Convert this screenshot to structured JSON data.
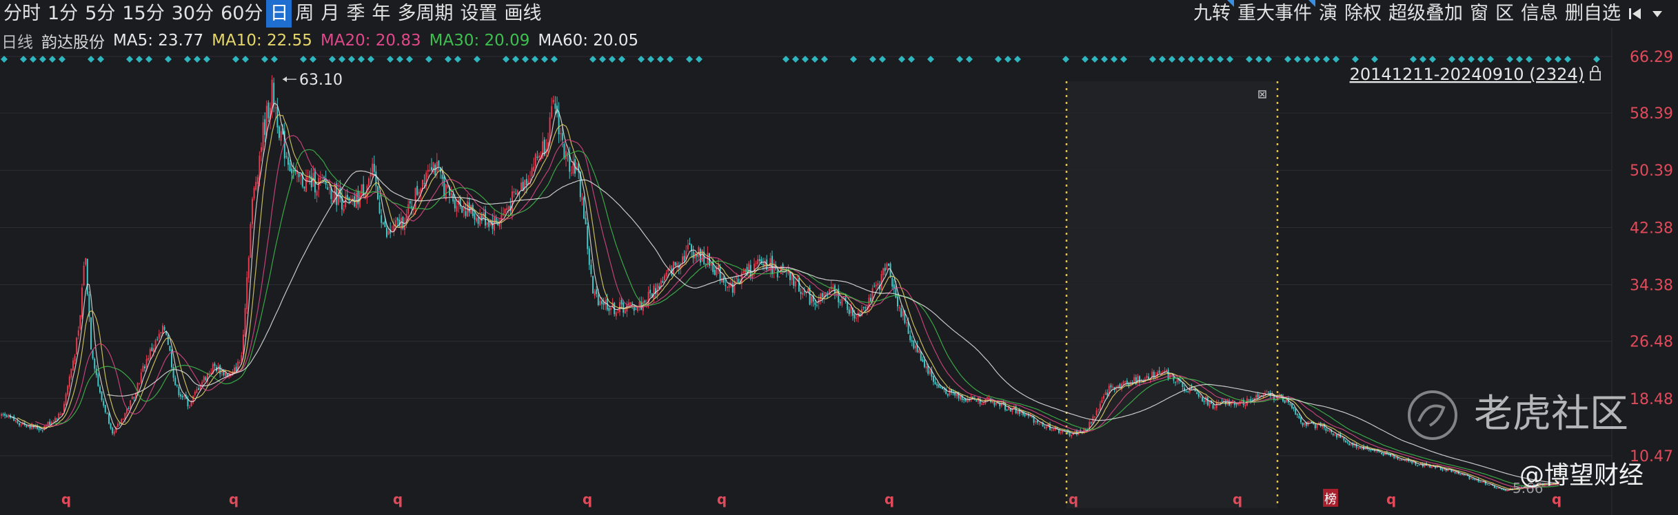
{
  "toolbar": {
    "periods": [
      "分时",
      "1分",
      "5分",
      "15分",
      "30分",
      "60分",
      "日",
      "周",
      "月",
      "季",
      "年",
      "多周期",
      "设置",
      "画线"
    ],
    "active_period": "日",
    "right_tools": [
      "九转",
      "重大事件",
      "演",
      "除权",
      "超级叠加",
      "窗",
      "区",
      "信息",
      "删自选"
    ]
  },
  "indicators": {
    "period_label": "日线",
    "stock_name": "韵达股份",
    "ma5": "MA5: 23.77",
    "ma10": "MA10: 22.55",
    "ma20": "MA20: 20.83",
    "ma30": "MA30: 20.09",
    "ma60": "MA60: 20.05"
  },
  "colors": {
    "background": "#1b1c20",
    "up": "#e8394f",
    "down": "#3fc6c6",
    "ma5": "#e8e8e8",
    "ma10": "#e6d76a",
    "ma20": "#e0488a",
    "ma30": "#3fbf4f",
    "ma60": "#e8e8e8",
    "axis_text": "#e04a5a",
    "range_marker": "#e6c14a"
  },
  "range_label": "20141211-20240910 (2324)",
  "watermarks": {
    "logo_text": "老虎社区",
    "author": "@博望财经"
  },
  "chart_data": {
    "type": "candlestick",
    "y_ticks": [
      "66.29",
      "58.39",
      "50.39",
      "42.38",
      "34.38",
      "26.48",
      "18.48",
      "10.47"
    ],
    "ylim": [
      3.0,
      66.29
    ],
    "price_series": [
      [
        0,
        16.0
      ],
      [
        60,
        14.2
      ],
      [
        90,
        16.5
      ],
      [
        115,
        28.0
      ],
      [
        123,
        39.5
      ],
      [
        132,
        26.0
      ],
      [
        145,
        19.0
      ],
      [
        165,
        13.5
      ],
      [
        190,
        18.0
      ],
      [
        215,
        24.5
      ],
      [
        240,
        28.5
      ],
      [
        255,
        20.0
      ],
      [
        275,
        17.5
      ],
      [
        290,
        20.5
      ],
      [
        310,
        23.0
      ],
      [
        335,
        21.5
      ],
      [
        350,
        24.0
      ],
      [
        365,
        45.0
      ],
      [
        380,
        55.0
      ],
      [
        395,
        61.5
      ],
      [
        410,
        54.0
      ],
      [
        430,
        49.0
      ],
      [
        470,
        48.5
      ],
      [
        510,
        45.0
      ],
      [
        540,
        50.0
      ],
      [
        560,
        41.0
      ],
      [
        590,
        44.0
      ],
      [
        625,
        52.0
      ],
      [
        650,
        47.0
      ],
      [
        690,
        44.0
      ],
      [
        720,
        43.0
      ],
      [
        750,
        47.0
      ],
      [
        790,
        54.0
      ],
      [
        805,
        59.5
      ],
      [
        820,
        52.0
      ],
      [
        835,
        51.0
      ],
      [
        845,
        46.0
      ],
      [
        860,
        33.0
      ],
      [
        890,
        31.0
      ],
      [
        930,
        31.5
      ],
      [
        970,
        36.0
      ],
      [
        1000,
        39.5
      ],
      [
        1030,
        37.5
      ],
      [
        1060,
        34.0
      ],
      [
        1080,
        36.0
      ],
      [
        1110,
        37.5
      ],
      [
        1150,
        35.0
      ],
      [
        1180,
        32.0
      ],
      [
        1210,
        33.5
      ],
      [
        1240,
        30.0
      ],
      [
        1270,
        33.5
      ],
      [
        1290,
        37.5
      ],
      [
        1295,
        34.0
      ],
      [
        1320,
        27.0
      ],
      [
        1360,
        20.0
      ],
      [
        1400,
        18.5
      ],
      [
        1440,
        18.0
      ],
      [
        1480,
        16.5
      ],
      [
        1520,
        14.5
      ],
      [
        1550,
        13.5
      ],
      [
        1575,
        14.0
      ],
      [
        1610,
        20.0
      ],
      [
        1650,
        21.0
      ],
      [
        1685,
        22.5
      ],
      [
        1720,
        20.0
      ],
      [
        1760,
        17.5
      ],
      [
        1800,
        18.0
      ],
      [
        1840,
        19.0
      ],
      [
        1870,
        18.0
      ],
      [
        1890,
        15.0
      ],
      [
        1920,
        14.5
      ],
      [
        1960,
        12.0
      ],
      [
        2000,
        11.0
      ],
      [
        2050,
        9.5
      ],
      [
        2100,
        8.5
      ],
      [
        2150,
        6.8
      ],
      [
        2180,
        5.6
      ],
      [
        2220,
        6.3
      ],
      [
        2260,
        6.7
      ]
    ],
    "max_label": "63.10",
    "min_label": "5.66",
    "event_markers": [
      "q",
      "q",
      "q",
      "q",
      "q",
      "q",
      "q",
      "q",
      "榜",
      "q",
      "q"
    ]
  }
}
